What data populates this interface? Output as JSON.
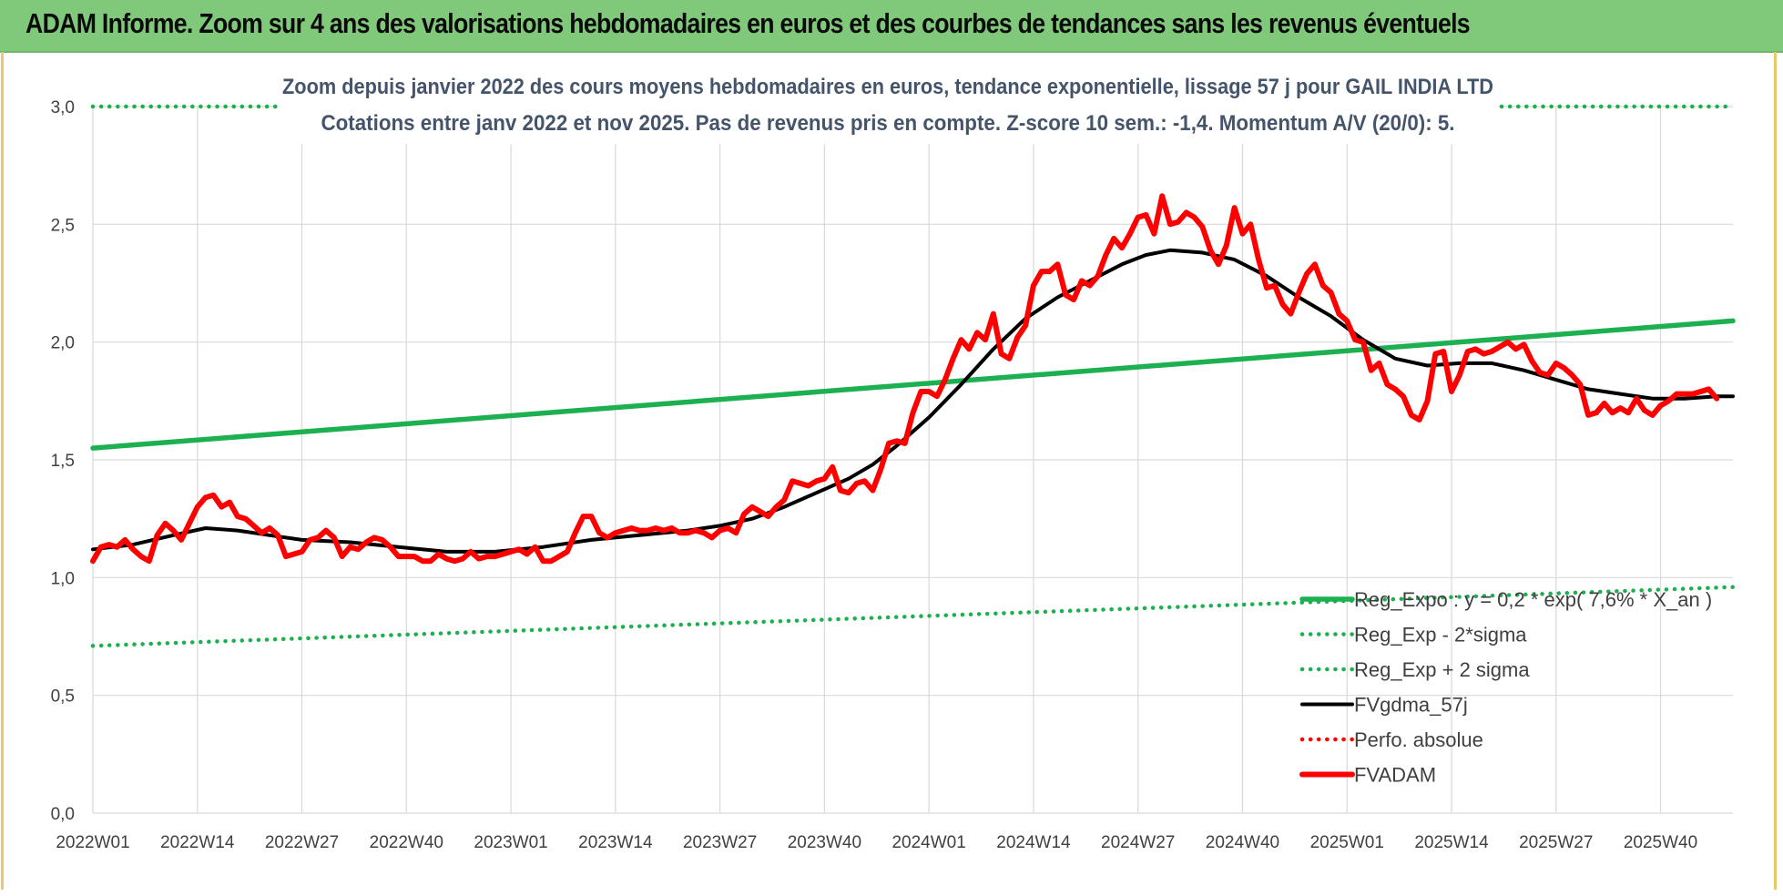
{
  "banner": {
    "title": "ADAM Informe. Zoom sur 4 ans des valorisations hebdomadaires en euros et des courbes de tendances sans les revenus éventuels"
  },
  "colors": {
    "banner": "#80c97a",
    "trend_green": "#1db050",
    "trend_black": "#000000",
    "price_red": "#ff0000",
    "grid": "#d9d9d9",
    "title": "#44546a"
  },
  "chart_data": {
    "type": "line",
    "title": "Zoom depuis janvier 2022 des cours moyens hebdomadaires en euros, tendance exponentielle, lissage 57 j pour GAIL INDIA LTD",
    "subtitle": "Cotations entre janv 2022 et nov 2025. Pas de revenus pris en compte. Z-score 10 sem.: -1,4. Momentum A/V (20/0): 5.",
    "x_tick_labels": [
      "2022W01",
      "2022W14",
      "2022W27",
      "2022W40",
      "2023W01",
      "2023W14",
      "2023W27",
      "2023W40",
      "2024W01",
      "2024W14",
      "2024W27",
      "2024W40",
      "2025W01",
      "2025W14",
      "2025W27",
      "2025W40"
    ],
    "x_tick_weeks": [
      0,
      13,
      26,
      39,
      52,
      65,
      78,
      91,
      104,
      117,
      130,
      143,
      156,
      169,
      182,
      195
    ],
    "x_range_weeks": [
      0,
      204
    ],
    "y_tick_labels": [
      "0,0",
      "0,5",
      "1,0",
      "1,5",
      "2,0",
      "2,5",
      "3,0"
    ],
    "ylim": [
      0,
      3
    ],
    "grid": true,
    "legend_position": "bottom-right",
    "series": [
      {
        "name": "Reg_Expo : y = 0,2 * exp( 7,6% * X_an )",
        "style": "solid-thick",
        "color": "#1db050",
        "points": [
          [
            0,
            1.55
          ],
          [
            204,
            2.09
          ]
        ]
      },
      {
        "name": "Reg_Exp - 2*sigma",
        "style": "dotted",
        "color": "#1db050",
        "points": [
          [
            0,
            0.71
          ],
          [
            204,
            0.96
          ]
        ]
      },
      {
        "name": "Reg_Exp + 2 sigma",
        "style": "dotted",
        "color": "#1db050",
        "points": [
          [
            0,
            3.0
          ],
          [
            204,
            3.0
          ]
        ]
      },
      {
        "name": "FVgdma_57j",
        "style": "solid",
        "color": "#000000",
        "points": [
          [
            0,
            1.12
          ],
          [
            5,
            1.14
          ],
          [
            10,
            1.18
          ],
          [
            14,
            1.21
          ],
          [
            18,
            1.2
          ],
          [
            22,
            1.18
          ],
          [
            26,
            1.16
          ],
          [
            32,
            1.15
          ],
          [
            38,
            1.13
          ],
          [
            44,
            1.11
          ],
          [
            50,
            1.11
          ],
          [
            56,
            1.13
          ],
          [
            62,
            1.16
          ],
          [
            68,
            1.18
          ],
          [
            74,
            1.2
          ],
          [
            78,
            1.22
          ],
          [
            82,
            1.25
          ],
          [
            86,
            1.3
          ],
          [
            90,
            1.36
          ],
          [
            94,
            1.42
          ],
          [
            97,
            1.48
          ],
          [
            100,
            1.56
          ],
          [
            104,
            1.68
          ],
          [
            108,
            1.82
          ],
          [
            112,
            1.97
          ],
          [
            116,
            2.1
          ],
          [
            120,
            2.19
          ],
          [
            124,
            2.26
          ],
          [
            128,
            2.33
          ],
          [
            131,
            2.37
          ],
          [
            134,
            2.39
          ],
          [
            138,
            2.38
          ],
          [
            142,
            2.35
          ],
          [
            146,
            2.28
          ],
          [
            150,
            2.19
          ],
          [
            154,
            2.11
          ],
          [
            158,
            2.01
          ],
          [
            162,
            1.93
          ],
          [
            166,
            1.9
          ],
          [
            170,
            1.91
          ],
          [
            174,
            1.91
          ],
          [
            178,
            1.88
          ],
          [
            182,
            1.84
          ],
          [
            186,
            1.8
          ],
          [
            190,
            1.78
          ],
          [
            194,
            1.76
          ],
          [
            198,
            1.76
          ],
          [
            202,
            1.77
          ],
          [
            204,
            1.77
          ]
        ]
      },
      {
        "name": "Perfo. absolue",
        "style": "dotted",
        "color": "#ff0000",
        "points": []
      },
      {
        "name": "FVADAM",
        "style": "solid-thick",
        "color": "#ff0000",
        "points": [
          [
            0,
            1.07
          ],
          [
            1,
            1.13
          ],
          [
            2,
            1.14
          ],
          [
            3,
            1.13
          ],
          [
            4,
            1.16
          ],
          [
            5,
            1.12
          ],
          [
            6,
            1.09
          ],
          [
            7,
            1.07
          ],
          [
            8,
            1.18
          ],
          [
            9,
            1.23
          ],
          [
            10,
            1.2
          ],
          [
            11,
            1.16
          ],
          [
            12,
            1.23
          ],
          [
            13,
            1.3
          ],
          [
            14,
            1.34
          ],
          [
            15,
            1.35
          ],
          [
            16,
            1.3
          ],
          [
            17,
            1.32
          ],
          [
            18,
            1.26
          ],
          [
            19,
            1.25
          ],
          [
            20,
            1.22
          ],
          [
            21,
            1.19
          ],
          [
            22,
            1.21
          ],
          [
            23,
            1.18
          ],
          [
            24,
            1.09
          ],
          [
            25,
            1.1
          ],
          [
            26,
            1.11
          ],
          [
            27,
            1.16
          ],
          [
            28,
            1.17
          ],
          [
            29,
            1.2
          ],
          [
            30,
            1.17
          ],
          [
            31,
            1.09
          ],
          [
            32,
            1.13
          ],
          [
            33,
            1.12
          ],
          [
            34,
            1.15
          ],
          [
            35,
            1.17
          ],
          [
            36,
            1.16
          ],
          [
            37,
            1.13
          ],
          [
            38,
            1.09
          ],
          [
            39,
            1.09
          ],
          [
            40,
            1.09
          ],
          [
            41,
            1.07
          ],
          [
            42,
            1.07
          ],
          [
            43,
            1.1
          ],
          [
            44,
            1.08
          ],
          [
            45,
            1.07
          ],
          [
            46,
            1.08
          ],
          [
            47,
            1.11
          ],
          [
            48,
            1.08
          ],
          [
            49,
            1.09
          ],
          [
            50,
            1.09
          ],
          [
            51,
            1.1
          ],
          [
            52,
            1.11
          ],
          [
            53,
            1.12
          ],
          [
            54,
            1.1
          ],
          [
            55,
            1.13
          ],
          [
            56,
            1.07
          ],
          [
            57,
            1.07
          ],
          [
            58,
            1.09
          ],
          [
            59,
            1.11
          ],
          [
            60,
            1.19
          ],
          [
            61,
            1.26
          ],
          [
            62,
            1.26
          ],
          [
            63,
            1.19
          ],
          [
            64,
            1.17
          ],
          [
            65,
            1.19
          ],
          [
            66,
            1.2
          ],
          [
            67,
            1.21
          ],
          [
            68,
            1.2
          ],
          [
            69,
            1.2
          ],
          [
            70,
            1.21
          ],
          [
            71,
            1.2
          ],
          [
            72,
            1.21
          ],
          [
            73,
            1.19
          ],
          [
            74,
            1.19
          ],
          [
            75,
            1.2
          ],
          [
            76,
            1.19
          ],
          [
            77,
            1.17
          ],
          [
            78,
            1.2
          ],
          [
            79,
            1.21
          ],
          [
            80,
            1.19
          ],
          [
            81,
            1.27
          ],
          [
            82,
            1.3
          ],
          [
            83,
            1.28
          ],
          [
            84,
            1.26
          ],
          [
            85,
            1.3
          ],
          [
            86,
            1.33
          ],
          [
            87,
            1.41
          ],
          [
            88,
            1.4
          ],
          [
            89,
            1.39
          ],
          [
            90,
            1.41
          ],
          [
            91,
            1.42
          ],
          [
            92,
            1.47
          ],
          [
            93,
            1.37
          ],
          [
            94,
            1.36
          ],
          [
            95,
            1.4
          ],
          [
            96,
            1.41
          ],
          [
            97,
            1.37
          ],
          [
            98,
            1.46
          ],
          [
            99,
            1.57
          ],
          [
            100,
            1.58
          ],
          [
            101,
            1.57
          ],
          [
            102,
            1.7
          ],
          [
            103,
            1.79
          ],
          [
            104,
            1.79
          ],
          [
            105,
            1.77
          ],
          [
            106,
            1.84
          ],
          [
            107,
            1.93
          ],
          [
            108,
            2.01
          ],
          [
            109,
            1.97
          ],
          [
            110,
            2.04
          ],
          [
            111,
            2.01
          ],
          [
            112,
            2.12
          ],
          [
            113,
            1.95
          ],
          [
            114,
            1.93
          ],
          [
            115,
            2.02
          ],
          [
            116,
            2.07
          ],
          [
            117,
            2.24
          ],
          [
            118,
            2.3
          ],
          [
            119,
            2.3
          ],
          [
            120,
            2.33
          ],
          [
            121,
            2.2
          ],
          [
            122,
            2.18
          ],
          [
            123,
            2.26
          ],
          [
            124,
            2.24
          ],
          [
            125,
            2.28
          ],
          [
            126,
            2.37
          ],
          [
            127,
            2.44
          ],
          [
            128,
            2.4
          ],
          [
            129,
            2.46
          ],
          [
            130,
            2.53
          ],
          [
            131,
            2.54
          ],
          [
            132,
            2.46
          ],
          [
            133,
            2.62
          ],
          [
            134,
            2.5
          ],
          [
            135,
            2.51
          ],
          [
            136,
            2.55
          ],
          [
            137,
            2.53
          ],
          [
            138,
            2.49
          ],
          [
            139,
            2.39
          ],
          [
            140,
            2.33
          ],
          [
            141,
            2.41
          ],
          [
            142,
            2.57
          ],
          [
            143,
            2.46
          ],
          [
            144,
            2.5
          ],
          [
            145,
            2.35
          ],
          [
            146,
            2.23
          ],
          [
            147,
            2.24
          ],
          [
            148,
            2.16
          ],
          [
            149,
            2.12
          ],
          [
            150,
            2.21
          ],
          [
            151,
            2.29
          ],
          [
            152,
            2.33
          ],
          [
            153,
            2.24
          ],
          [
            154,
            2.21
          ],
          [
            155,
            2.12
          ],
          [
            156,
            2.09
          ],
          [
            157,
            2.01
          ],
          [
            158,
            2.0
          ],
          [
            159,
            1.88
          ],
          [
            160,
            1.91
          ],
          [
            161,
            1.82
          ],
          [
            162,
            1.8
          ],
          [
            163,
            1.77
          ],
          [
            164,
            1.69
          ],
          [
            165,
            1.67
          ],
          [
            166,
            1.75
          ],
          [
            167,
            1.95
          ],
          [
            168,
            1.96
          ],
          [
            169,
            1.79
          ],
          [
            170,
            1.86
          ],
          [
            171,
            1.96
          ],
          [
            172,
            1.97
          ],
          [
            173,
            1.95
          ],
          [
            174,
            1.96
          ],
          [
            175,
            1.98
          ],
          [
            176,
            2.0
          ],
          [
            177,
            1.97
          ],
          [
            178,
            1.99
          ],
          [
            179,
            1.92
          ],
          [
            180,
            1.87
          ],
          [
            181,
            1.86
          ],
          [
            182,
            1.91
          ],
          [
            183,
            1.89
          ],
          [
            184,
            1.86
          ],
          [
            185,
            1.82
          ],
          [
            186,
            1.69
          ],
          [
            187,
            1.7
          ],
          [
            188,
            1.74
          ],
          [
            189,
            1.7
          ],
          [
            190,
            1.72
          ],
          [
            191,
            1.7
          ],
          [
            192,
            1.76
          ],
          [
            193,
            1.71
          ],
          [
            194,
            1.69
          ],
          [
            195,
            1.73
          ],
          [
            196,
            1.75
          ],
          [
            197,
            1.78
          ],
          [
            198,
            1.78
          ],
          [
            199,
            1.78
          ],
          [
            200,
            1.79
          ],
          [
            201,
            1.8
          ],
          [
            202,
            1.76
          ]
        ]
      }
    ]
  }
}
